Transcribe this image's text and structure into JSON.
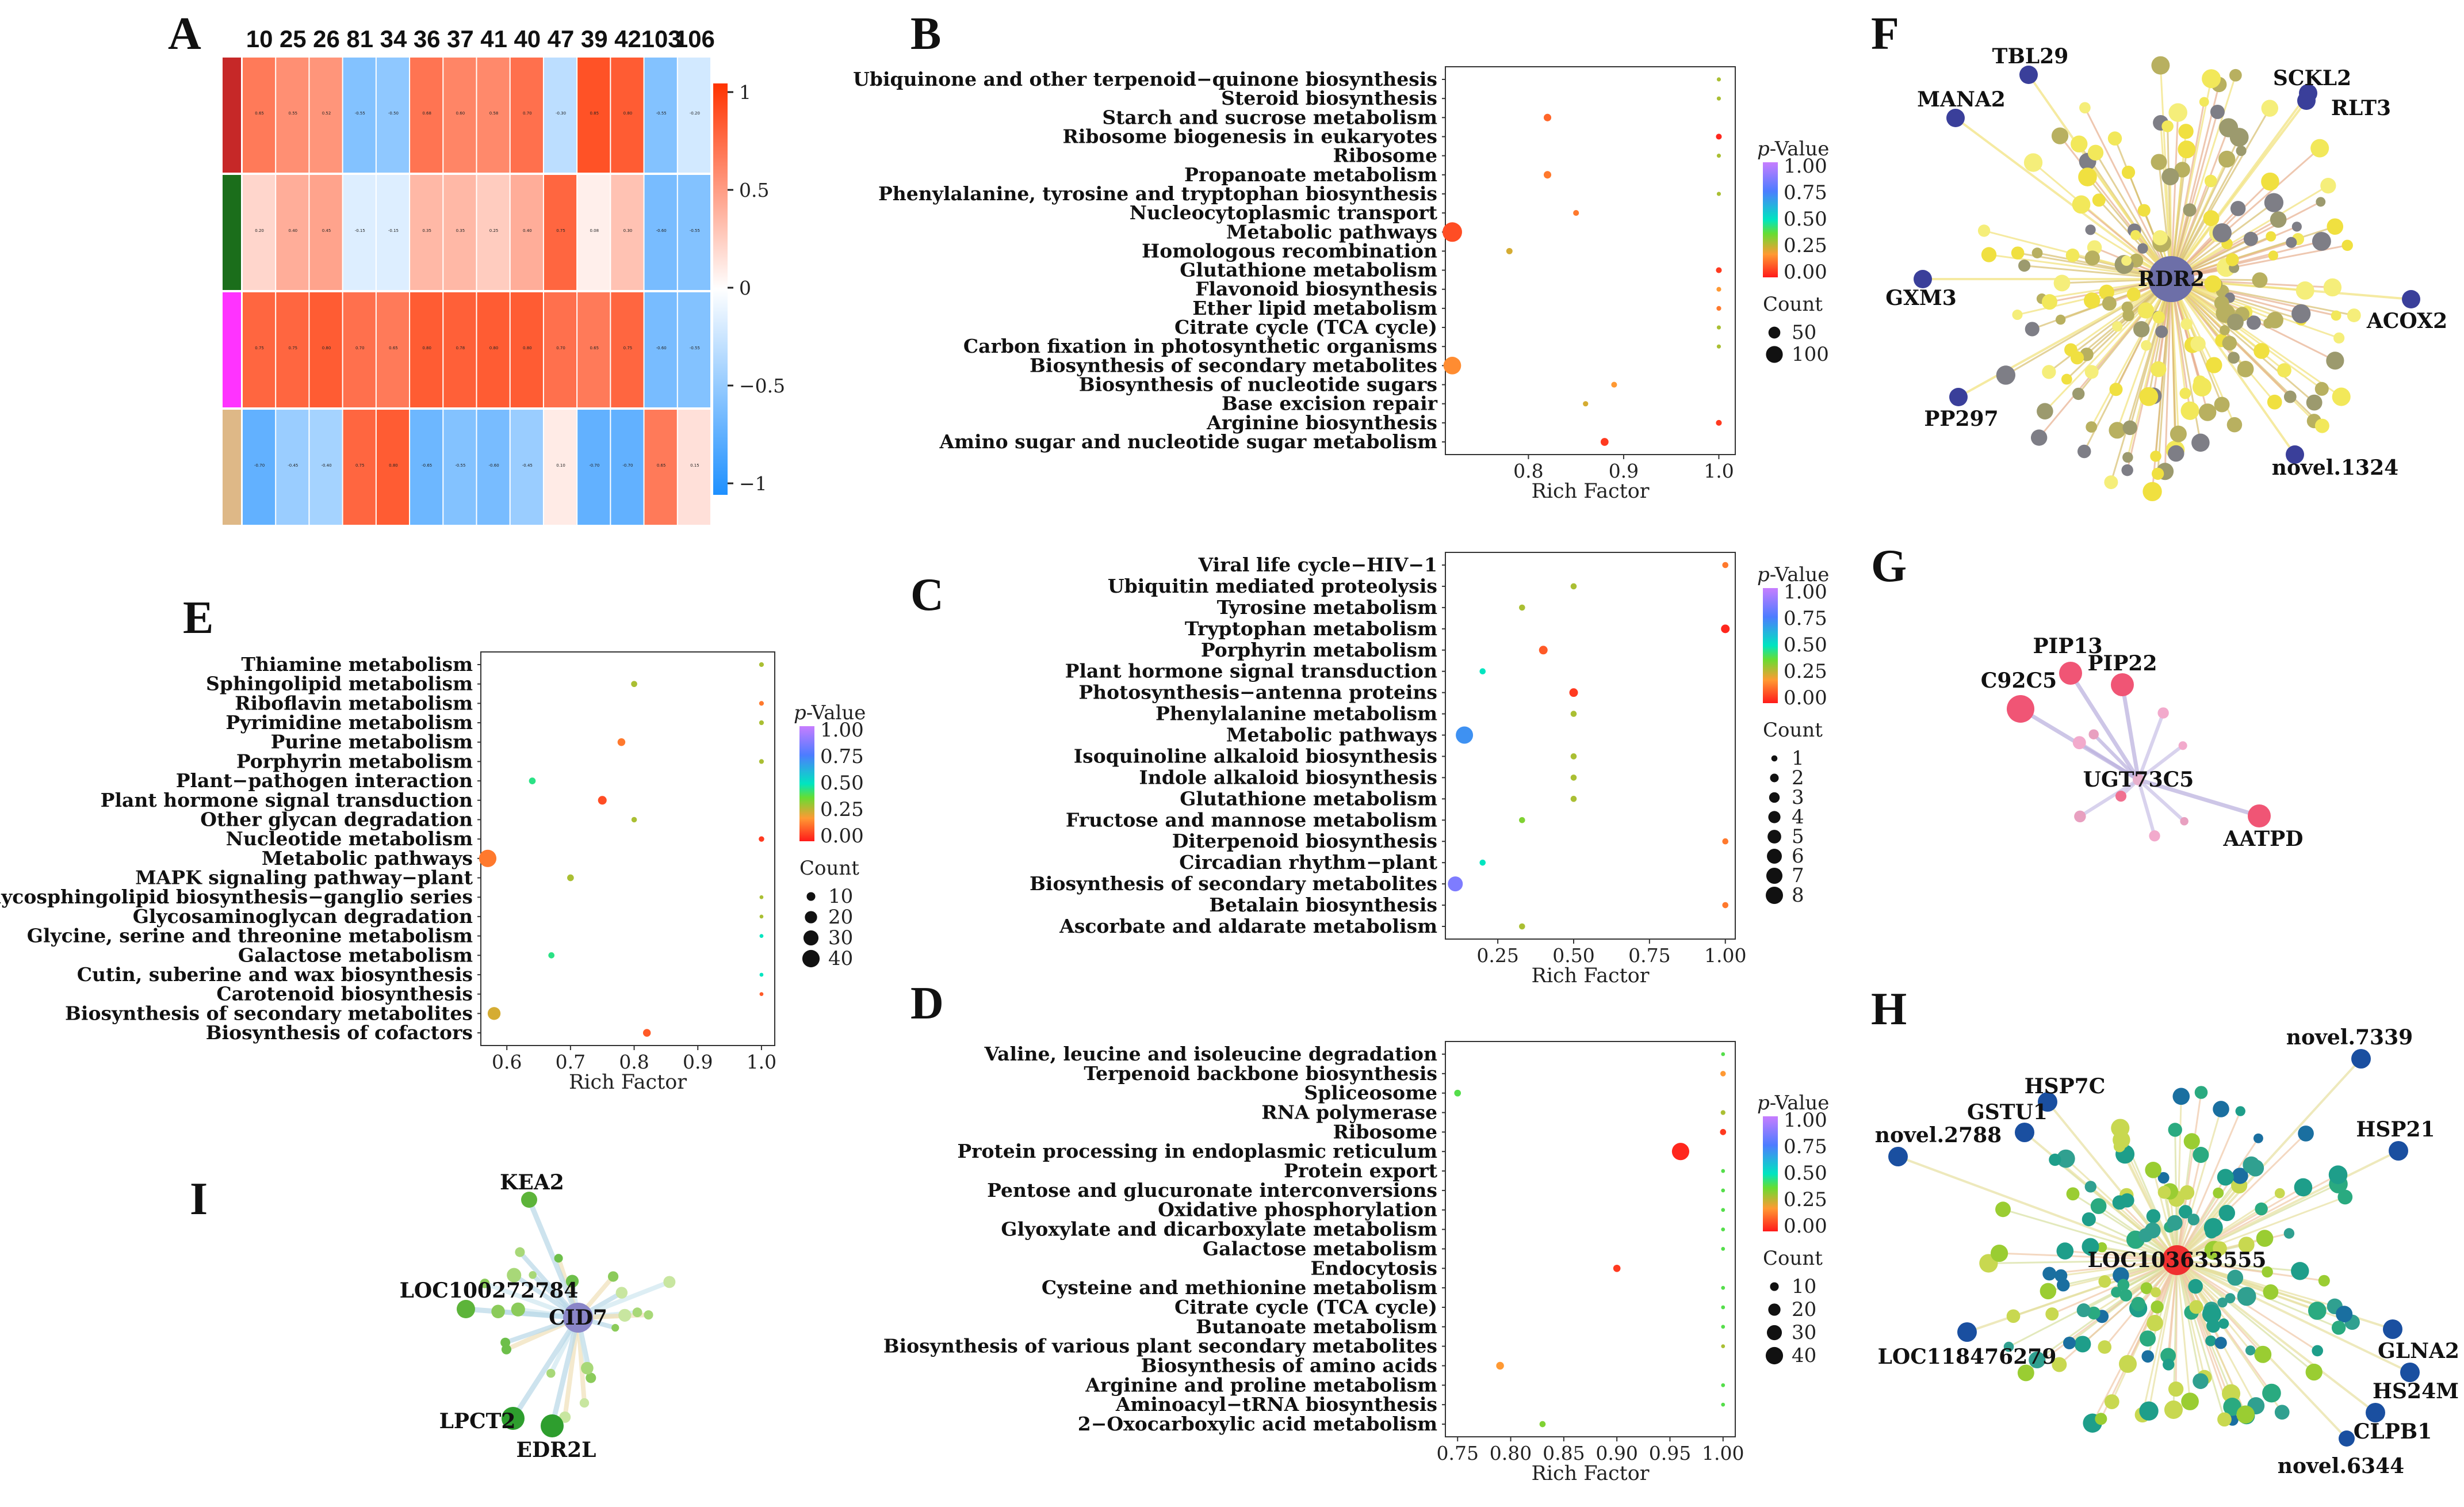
{
  "panels": {
    "A": "A",
    "B": "B",
    "C": "C",
    "D": "D",
    "E": "E",
    "F": "F",
    "G": "G",
    "H": "H",
    "I": "I"
  },
  "colors": {
    "hm_low": "#1E90FF",
    "hm_mid": "#FFFFFF",
    "hm_high": "#FF3300",
    "grp1": "#C62828",
    "grp2": "#1B6E1B",
    "grp3": "#FF33FF",
    "grp4": "#DEB887"
  },
  "legend_labels": {
    "pvalue_p": "p",
    "pvalue_rest": "-Value",
    "count": "Count",
    "rich": "Rich Factor"
  },
  "chart_data": [
    {
      "id": "A",
      "type": "heatmap",
      "columns": [
        "10",
        "25",
        "26",
        "81",
        "34",
        "36",
        "37",
        "41",
        "40",
        "47",
        "39",
        "42",
        "103",
        "106"
      ],
      "rows": [
        [
          0.65,
          0.55,
          0.52,
          -0.55,
          -0.5,
          0.68,
          0.6,
          0.58,
          0.7,
          -0.3,
          0.85,
          0.8,
          -0.55,
          -0.2
        ],
        [
          0.2,
          0.4,
          0.45,
          -0.15,
          -0.15,
          0.35,
          0.35,
          0.25,
          0.4,
          0.75,
          0.08,
          0.3,
          -0.6,
          -0.55
        ],
        [
          0.75,
          0.75,
          0.8,
          0.7,
          0.65,
          0.8,
          0.78,
          0.8,
          0.8,
          0.7,
          0.65,
          0.75,
          -0.6,
          -0.55
        ],
        [
          -0.7,
          -0.45,
          -0.4,
          0.75,
          0.8,
          -0.65,
          -0.55,
          -0.6,
          -0.45,
          0.1,
          -0.7,
          -0.7,
          0.65,
          0.15
        ]
      ],
      "scale_ticks": [
        "1",
        "0.5",
        "0",
        "−0.5",
        "−1"
      ]
    },
    {
      "id": "B",
      "type": "scatter",
      "xlabel": "Rich Factor",
      "xlim": [
        0.72,
        1.01
      ],
      "xticks": [
        "0.8",
        "0.9",
        "1.0"
      ],
      "xtick_values": [
        0.8,
        0.9,
        1.0
      ],
      "count_legend": [
        "50",
        "100"
      ],
      "count_values": [
        50,
        100
      ],
      "size_max": 120,
      "pvalue_ticks": [
        "1.00",
        "0.75",
        "0.50",
        "0.25",
        "0.00"
      ],
      "terms": [
        "Ubiquinone and other terpenoid−quinone biosynthesis",
        "Steroid biosynthesis",
        "Starch and sucrose metabolism",
        "Ribosome biogenesis in eukaryotes",
        "Ribosome",
        "Propanoate metabolism",
        "Phenylalanine, tyrosine and tryptophan biosynthesis",
        "Nucleocytoplasmic transport",
        "Metabolic pathways",
        "Homologous recombination",
        "Glutathione metabolism",
        "Flavonoid biosynthesis",
        "Ether lipid metabolism",
        "Citrate cycle (TCA cycle)",
        "Carbon fixation in photosynthetic organisms",
        "Biosynthesis of secondary metabolites",
        "Biosynthesis of nucleotide sugars",
        "Base excision repair",
        "Arginine biosynthesis",
        "Amino sugar and nucleotide sugar metabolism"
      ],
      "x": [
        1.0,
        1.0,
        0.82,
        1.0,
        1.0,
        0.82,
        1.0,
        0.85,
        0.72,
        0.78,
        1.0,
        1.0,
        1.0,
        1.0,
        1.0,
        0.72,
        0.89,
        0.86,
        1.0,
        0.88
      ],
      "count": [
        6,
        6,
        20,
        12,
        6,
        20,
        6,
        12,
        135,
        14,
        12,
        8,
        8,
        6,
        6,
        110,
        12,
        10,
        12,
        22
      ],
      "p": [
        0.3,
        0.3,
        0.12,
        0.02,
        0.3,
        0.15,
        0.3,
        0.15,
        0.08,
        0.25,
        0.05,
        0.2,
        0.15,
        0.3,
        0.3,
        0.18,
        0.2,
        0.25,
        0.05,
        0.05
      ]
    },
    {
      "id": "C",
      "type": "scatter",
      "xlabel": "Rich Factor",
      "xlim": [
        0.1,
        1.01
      ],
      "xticks": [
        "0.25",
        "0.50",
        "0.75",
        "1.00"
      ],
      "xtick_values": [
        0.25,
        0.5,
        0.75,
        1.0
      ],
      "count_legend": [
        "1",
        "2",
        "3",
        "4",
        "5",
        "6",
        "7",
        "8"
      ],
      "count_values": [
        1,
        2,
        3,
        4,
        5,
        6,
        7,
        8
      ],
      "size_max": 8,
      "pvalue_ticks": [
        "1.00",
        "0.75",
        "0.50",
        "0.25",
        "0.00"
      ],
      "terms": [
        "Viral life cycle−HIV−1",
        "Ubiquitin mediated proteolysis",
        "Tyrosine metabolism",
        "Tryptophan metabolism",
        "Porphyrin metabolism",
        "Plant hormone signal transduction",
        "Photosynthesis−antenna proteins",
        "Phenylalanine metabolism",
        "Metabolic pathways",
        "Isoquinoline alkaloid biosynthesis",
        "Indole alkaloid biosynthesis",
        "Glutathione metabolism",
        "Fructose and mannose metabolism",
        "Diterpenoid biosynthesis",
        "Circadian rhythm−plant",
        "Biosynthesis of secondary metabolites",
        "Betalain biosynthesis",
        "Ascorbate and aldarate metabolism"
      ],
      "x": [
        1.0,
        0.5,
        0.33,
        1.0,
        0.4,
        0.2,
        0.5,
        0.5,
        0.14,
        0.5,
        0.5,
        0.5,
        0.33,
        1.0,
        0.2,
        0.11,
        1.0,
        0.33
      ],
      "count": [
        1,
        1,
        1,
        2,
        2,
        1,
        2,
        1,
        8,
        1,
        1,
        1,
        1,
        1,
        1,
        6,
        1,
        1
      ],
      "p": [
        0.15,
        0.3,
        0.3,
        0.02,
        0.1,
        0.5,
        0.05,
        0.3,
        0.7,
        0.3,
        0.3,
        0.3,
        0.35,
        0.15,
        0.5,
        0.85,
        0.15,
        0.3
      ]
    },
    {
      "id": "D",
      "type": "scatter",
      "xlabel": "Rich Factor",
      "xlim": [
        0.745,
        1.005
      ],
      "xticks": [
        "0.75",
        "0.80",
        "0.85",
        "0.90",
        "0.95",
        "1.00"
      ],
      "xtick_values": [
        0.75,
        0.8,
        0.85,
        0.9,
        0.95,
        1.0
      ],
      "count_legend": [
        "10",
        "20",
        "30",
        "40"
      ],
      "count_values": [
        10,
        20,
        30,
        40
      ],
      "size_max": 45,
      "pvalue_ticks": [
        "1.00",
        "0.75",
        "0.50",
        "0.25",
        "0.00"
      ],
      "terms": [
        "Valine, leucine and isoleucine degradation",
        "Terpenoid backbone biosynthesis",
        "Spliceosome",
        "RNA polymerase",
        "Ribosome",
        "Protein processing in endoplasmic reticulum",
        "Protein export",
        "Pentose and glucuronate interconversions",
        "Oxidative phosphorylation",
        "Glyoxylate and dicarboxylate metabolism",
        "Galactose metabolism",
        "Endocytosis",
        "Cysteine and methionine metabolism",
        "Citrate cycle (TCA cycle)",
        "Butanoate metabolism",
        "Biosynthesis of various plant secondary metabolites",
        "Biosynthesis of amino acids",
        "Arginine and proline metabolism",
        "Aminoacyl−tRNA biosynthesis",
        "2−Oxocarboxylic acid metabolism"
      ],
      "x": [
        1.0,
        1.0,
        0.75,
        1.0,
        1.0,
        0.96,
        1.0,
        1.0,
        1.0,
        1.0,
        1.0,
        0.9,
        1.0,
        1.0,
        1.0,
        1.0,
        0.79,
        1.0,
        1.0,
        0.83
      ],
      "count": [
        2,
        4,
        6,
        3,
        5,
        40,
        2,
        2,
        2,
        2,
        2,
        7,
        2,
        2,
        2,
        2,
        8,
        2,
        2,
        5
      ],
      "p": [
        0.4,
        0.2,
        0.4,
        0.3,
        0.05,
        0.02,
        0.4,
        0.4,
        0.4,
        0.4,
        0.4,
        0.05,
        0.4,
        0.4,
        0.4,
        0.3,
        0.2,
        0.4,
        0.4,
        0.35
      ]
    },
    {
      "id": "E",
      "type": "scatter",
      "xlabel": "Rich Factor",
      "xlim": [
        0.57,
        1.01
      ],
      "xticks": [
        "0.6",
        "0.7",
        "0.8",
        "0.9",
        "1.0"
      ],
      "xtick_values": [
        0.6,
        0.7,
        0.8,
        0.9,
        1.0
      ],
      "count_legend": [
        "10",
        "20",
        "30",
        "40"
      ],
      "count_values": [
        10,
        20,
        30,
        40
      ],
      "size_max": 45,
      "pvalue_ticks": [
        "1.00",
        "0.75",
        "0.50",
        "0.25",
        "0.00"
      ],
      "terms": [
        "Thiamine metabolism",
        "Sphingolipid metabolism",
        "Riboflavin metabolism",
        "Pyrimidine metabolism",
        "Purine metabolism",
        "Porphyrin metabolism",
        "Plant−pathogen interaction",
        "Plant hormone signal transduction",
        "Other glycan degradation",
        "Nucleotide metabolism",
        "Metabolic pathways",
        "MAPK signaling pathway−plant",
        "Glycosphingolipid biosynthesis−ganglio series",
        "Glycosaminoglycan degradation",
        "Glycine, serine and threonine metabolism",
        "Galactose metabolism",
        "Cutin, suberine and wax biosynthesis",
        "Carotenoid biosynthesis",
        "Biosynthesis of secondary metabolites",
        "Biosynthesis of cofactors"
      ],
      "x": [
        1.0,
        0.8,
        1.0,
        1.0,
        0.78,
        1.0,
        0.64,
        0.75,
        0.8,
        1.0,
        0.57,
        0.7,
        1.0,
        1.0,
        1.0,
        0.67,
        1.0,
        1.0,
        0.58,
        0.82
      ],
      "count": [
        3,
        5,
        3,
        3,
        8,
        3,
        6,
        10,
        4,
        4,
        40,
        6,
        2,
        2,
        2,
        5,
        2,
        2,
        22,
        8
      ],
      "p": [
        0.3,
        0.3,
        0.15,
        0.3,
        0.15,
        0.3,
        0.45,
        0.08,
        0.3,
        0.05,
        0.15,
        0.3,
        0.3,
        0.3,
        0.5,
        0.45,
        0.5,
        0.1,
        0.25,
        0.1
      ]
    }
  ],
  "networks": {
    "F": {
      "center": "RDR2",
      "labels": [
        "TBL29",
        "MANA2",
        "SCKL2",
        "RLT3",
        "GXM3",
        "ACOX2",
        "PP297",
        "novel.1324"
      ]
    },
    "G": {
      "center": "UGT73C5",
      "labels": [
        "PIP13",
        "PIP22",
        "C92C5",
        "AATPD"
      ]
    },
    "H": {
      "center": "LOC103633555",
      "labels": [
        "HSP7C",
        "novel.7339",
        "GSTU1",
        "novel.2788",
        "HSP21",
        "LOC118476279",
        "GLNA2",
        "HS24M",
        "CLPB1",
        "novel.6344"
      ]
    },
    "I": {
      "center": "CID7",
      "labels": [
        "KEA2",
        "LOC100272784",
        "LPCT2",
        "EDR2L"
      ]
    }
  }
}
